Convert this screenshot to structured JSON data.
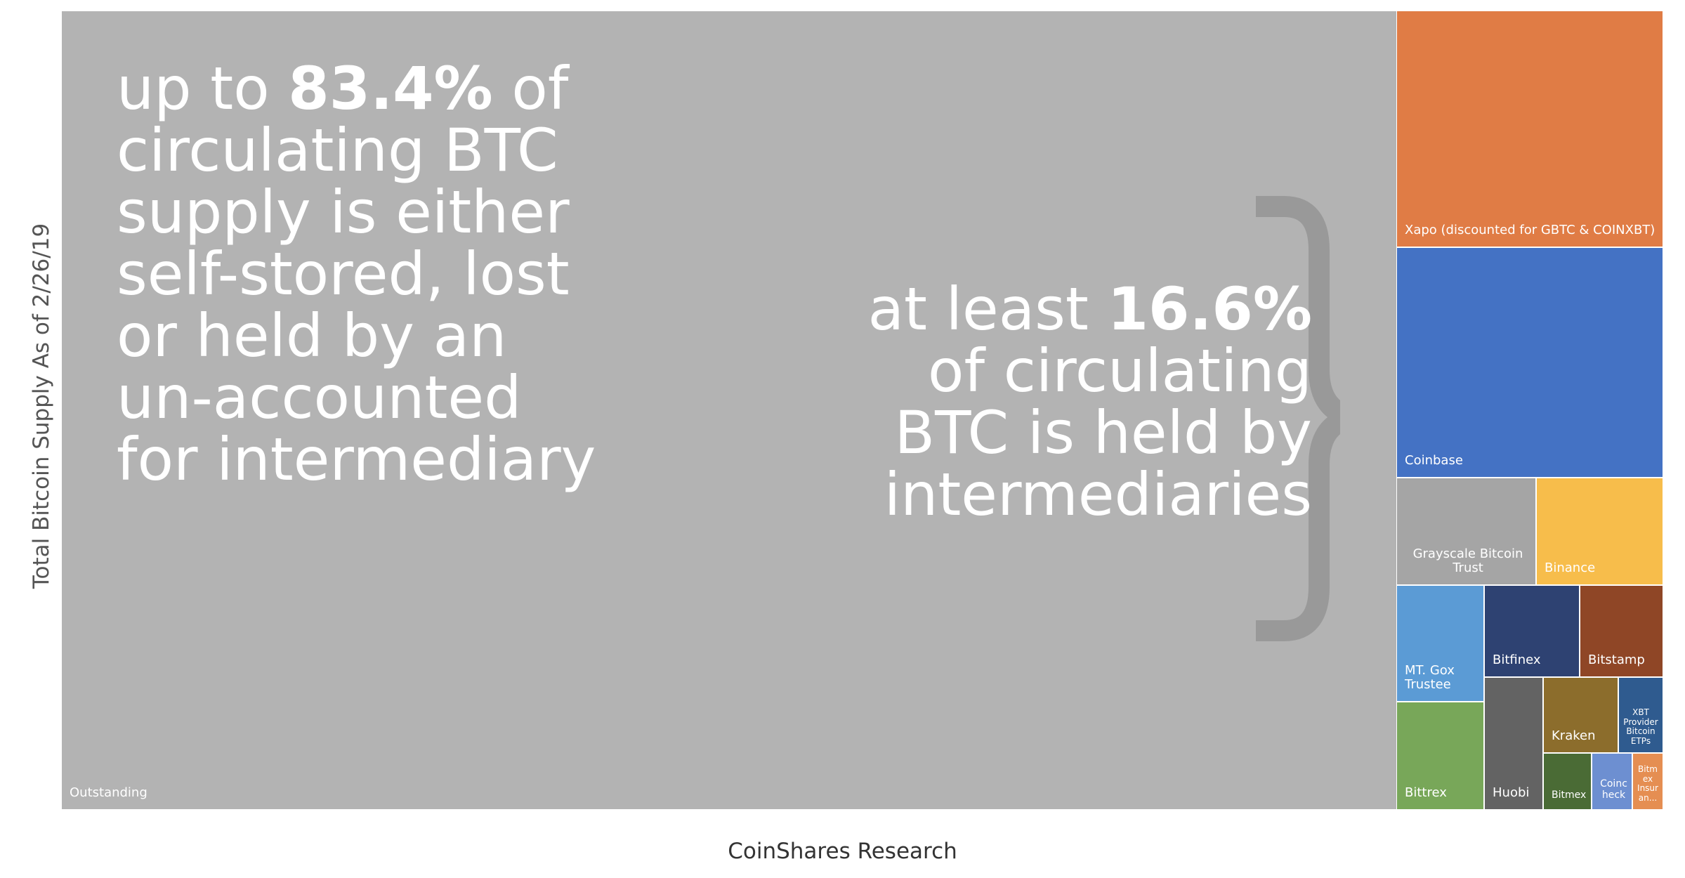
{
  "chart_data": {
    "type": "treemap",
    "ylabel": "Total Bitcoin Supply As of 2/26/19",
    "source": "CoinShares Research",
    "nodes": [
      {
        "name": "Outstanding",
        "share_pct": 83.4,
        "color": "#b3b3b3"
      },
      {
        "name": "Xapo (discounted for GBTC & COINXBT)",
        "color": "#e07c45"
      },
      {
        "name": "Coinbase",
        "color": "#4472c4"
      },
      {
        "name": "Grayscale Bitcoin Trust",
        "color": "#a5a5a5"
      },
      {
        "name": "Binance",
        "color": "#f7bd4b"
      },
      {
        "name": "MT. Gox Trustee",
        "color": "#5b9bd5"
      },
      {
        "name": "Bitfinex",
        "color": "#2e4272"
      },
      {
        "name": "Bitstamp",
        "color": "#8f4626"
      },
      {
        "name": "Bittrex",
        "color": "#78a759"
      },
      {
        "name": "Huobi",
        "color": "#636363"
      },
      {
        "name": "Kraken",
        "color": "#8c6d2c"
      },
      {
        "name": "XBT Provider Bitcoin ETPs",
        "color": "#2f5b8f"
      },
      {
        "name": "Bitmex",
        "color": "#4a6b35"
      },
      {
        "name": "Coinc heck",
        "color": "#6d8fd1"
      },
      {
        "name": "Bitm ex Insur an...",
        "color": "#e58e52"
      }
    ],
    "intermediaries_share_pct": 16.6
  },
  "annotations": {
    "left": {
      "pre": "up to ",
      "bold": "83.4%",
      "post": " of\ncirculating BTC\nsupply is either\nself-stored, lost\nor held by an\nun-accounted\nfor intermediary"
    },
    "right": {
      "pre": "at least ",
      "bold": "16.6%",
      "post": "\nof circulating\nBTC is held by\nintermediaries"
    }
  }
}
